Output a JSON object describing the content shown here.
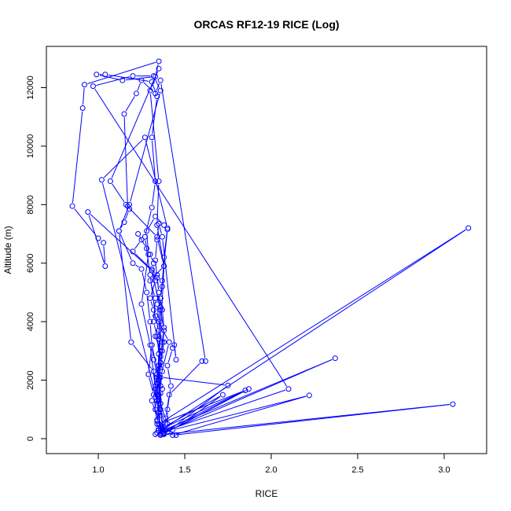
{
  "chart_data": {
    "type": "line",
    "title": "ORCAS RF12-19 RICE (Log)",
    "xlabel": "RICE",
    "ylabel": "Altitude (m)",
    "xlim": [
      0.8,
      3.15
    ],
    "ylim": [
      0,
      12900
    ],
    "xticks": [
      1.0,
      1.5,
      2.0,
      2.5,
      3.0
    ],
    "xtick_labels": [
      "1.0",
      "1.5",
      "2.0",
      "2.5",
      "3.0"
    ],
    "yticks": [
      0,
      2000,
      4000,
      6000,
      8000,
      10000,
      12000
    ],
    "ytick_labels": [
      "0",
      "2000",
      "4000",
      "6000",
      "8000",
      "10000",
      "12000"
    ],
    "grid": false,
    "legend": "none",
    "marker": "open-circle",
    "line_color": "#0000ff",
    "series": [
      {
        "points": [
          [
            1.36,
            120
          ],
          [
            1.4,
            500
          ],
          [
            1.33,
            1700
          ],
          [
            1.3,
            3200
          ],
          [
            1.25,
            4600
          ],
          [
            1.29,
            6300
          ],
          [
            1.28,
            7100
          ],
          [
            1.33,
            7600
          ],
          [
            1.38,
            7300
          ],
          [
            1.4,
            7150
          ],
          [
            1.37,
            5400
          ],
          [
            1.36,
            4800
          ],
          [
            1.35,
            3500
          ],
          [
            1.36,
            2600
          ],
          [
            1.35,
            1900
          ],
          [
            1.36,
            1000
          ],
          [
            1.38,
            200
          ],
          [
            1.45,
            120
          ],
          [
            1.38,
            400
          ],
          [
            1.72,
            1500
          ],
          [
            1.43,
            300
          ],
          [
            2.22,
            1480
          ],
          [
            1.43,
            120
          ],
          [
            3.05,
            1180
          ],
          [
            1.38,
            150
          ],
          [
            1.75,
            1820
          ],
          [
            1.36,
            2100
          ],
          [
            1.41,
            3300
          ],
          [
            1.33,
            4200
          ],
          [
            1.3,
            5600
          ],
          [
            1.27,
            6900
          ],
          [
            1.31,
            7900
          ],
          [
            1.33,
            8800
          ],
          [
            1.31,
            10300
          ],
          [
            1.34,
            11700
          ],
          [
            1.31,
            12200
          ],
          [
            1.04,
            12450
          ],
          [
            0.99,
            12450
          ],
          [
            1.14,
            12250
          ],
          [
            1.33,
            12380
          ],
          [
            1.35,
            12900
          ],
          [
            0.92,
            12100
          ],
          [
            0.91,
            11300
          ],
          [
            0.85,
            7950
          ],
          [
            1.0,
            6850
          ],
          [
            1.03,
            6700
          ],
          [
            1.04,
            5900
          ],
          [
            0.94,
            7750
          ],
          [
            1.31,
            5750
          ],
          [
            1.36,
            4400
          ],
          [
            1.38,
            3700
          ],
          [
            1.37,
            3000
          ],
          [
            1.35,
            2000
          ],
          [
            1.35,
            1300
          ],
          [
            1.34,
            500
          ],
          [
            1.33,
            150
          ],
          [
            1.37,
            300
          ],
          [
            1.39,
            700
          ],
          [
            1.41,
            1500
          ],
          [
            1.6,
            2650
          ],
          [
            1.62,
            2650
          ],
          [
            1.36,
            12250
          ],
          [
            1.33,
            11800
          ],
          [
            1.25,
            12250
          ],
          [
            1.22,
            11800
          ],
          [
            1.15,
            11100
          ],
          [
            1.17,
            7950
          ],
          [
            1.18,
            7850
          ],
          [
            1.15,
            7400
          ],
          [
            1.12,
            7100
          ],
          [
            1.2,
            6000
          ],
          [
            1.25,
            5800
          ],
          [
            1.28,
            5000
          ],
          [
            1.3,
            4000
          ],
          [
            1.31,
            3200
          ],
          [
            1.35,
            2100
          ],
          [
            1.36,
            1200
          ],
          [
            1.37,
            400
          ],
          [
            1.38,
            200
          ],
          [
            1.4,
            220
          ],
          [
            1.4,
            1000
          ],
          [
            1.42,
            1800
          ],
          [
            1.4,
            2500
          ],
          [
            1.43,
            3100
          ],
          [
            1.44,
            3200
          ],
          [
            1.45,
            2700
          ],
          [
            1.37,
            6900
          ],
          [
            1.35,
            7350
          ],
          [
            1.34,
            6800
          ],
          [
            1.33,
            6100
          ],
          [
            1.34,
            5500
          ],
          [
            1.35,
            5000
          ],
          [
            1.34,
            4600
          ],
          [
            1.35,
            4000
          ],
          [
            1.33,
            3500
          ],
          [
            1.36,
            3000
          ],
          [
            1.35,
            2500
          ],
          [
            1.34,
            2200
          ],
          [
            1.33,
            1800
          ],
          [
            1.34,
            1500
          ],
          [
            1.33,
            1000
          ],
          [
            1.34,
            600
          ],
          [
            1.35,
            300
          ],
          [
            1.36,
            160
          ],
          [
            2.37,
            2750
          ],
          [
            1.34,
            200
          ],
          [
            3.14,
            7200
          ],
          [
            1.35,
            500
          ],
          [
            1.85,
            1650
          ],
          [
            1.37,
            350
          ],
          [
            1.36,
            1550
          ],
          [
            1.35,
            3400
          ],
          [
            1.36,
            4500
          ],
          [
            1.35,
            5000
          ],
          [
            1.34,
            5600
          ],
          [
            1.2,
            6400
          ],
          [
            1.25,
            6800
          ],
          [
            1.23,
            7000
          ],
          [
            1.28,
            6500
          ],
          [
            1.3,
            6300
          ],
          [
            1.32,
            6000
          ],
          [
            1.31,
            5800
          ],
          [
            1.33,
            5400
          ],
          [
            1.3,
            4800
          ],
          [
            1.32,
            4400
          ],
          [
            1.35,
            3700
          ],
          [
            1.37,
            3300
          ],
          [
            1.38,
            3300
          ],
          [
            1.36,
            2600
          ],
          [
            1.34,
            2100
          ],
          [
            1.37,
            1700
          ],
          [
            1.35,
            1350
          ],
          [
            1.34,
            1300
          ],
          [
            1.36,
            1000
          ],
          [
            1.35,
            500
          ],
          [
            1.31,
            1300
          ],
          [
            1.35,
            2000
          ],
          [
            1.32,
            2700
          ],
          [
            1.31,
            3200
          ],
          [
            1.29,
            2200
          ],
          [
            1.32,
            1500
          ],
          [
            1.34,
            650
          ],
          [
            1.38,
            170
          ],
          [
            1.87,
            1700
          ],
          [
            1.37,
            230
          ],
          [
            2.1,
            1700
          ],
          [
            0.97,
            12050
          ],
          [
            1.2,
            12400
          ],
          [
            1.32,
            12400
          ],
          [
            1.36,
            11900
          ],
          [
            1.18,
            8000
          ],
          [
            1.12,
            7100
          ],
          [
            1.19,
            3300
          ],
          [
            1.32,
            2300
          ],
          [
            1.36,
            350
          ],
          [
            1.34,
            1300
          ],
          [
            1.38,
            5900
          ],
          [
            1.34,
            7300
          ],
          [
            1.35,
            8800
          ],
          [
            1.3,
            11900
          ],
          [
            1.35,
            12650
          ],
          [
            1.07,
            8800
          ],
          [
            1.16,
            8000
          ],
          [
            1.34,
            6900
          ],
          [
            1.38,
            5900
          ],
          [
            1.3,
            5400
          ],
          [
            1.33,
            4800
          ],
          [
            1.32,
            4000
          ],
          [
            1.34,
            3500
          ],
          [
            1.35,
            2900
          ],
          [
            1.34,
            1900
          ],
          [
            1.34,
            1500
          ],
          [
            1.36,
            800
          ],
          [
            1.02,
            8850
          ],
          [
            1.27,
            10300
          ],
          [
            1.4,
            7200
          ],
          [
            1.38,
            6200
          ],
          [
            1.37,
            5200
          ],
          [
            1.36,
            4800
          ],
          [
            1.37,
            4400
          ],
          [
            1.38,
            3800
          ],
          [
            1.36,
            2800
          ],
          [
            1.37,
            2300
          ],
          [
            1.36,
            1800
          ],
          [
            1.35,
            1500
          ],
          [
            1.36,
            1200
          ],
          [
            1.35,
            900
          ],
          [
            1.36,
            400
          ],
          [
            1.37,
            160
          ]
        ]
      }
    ]
  }
}
